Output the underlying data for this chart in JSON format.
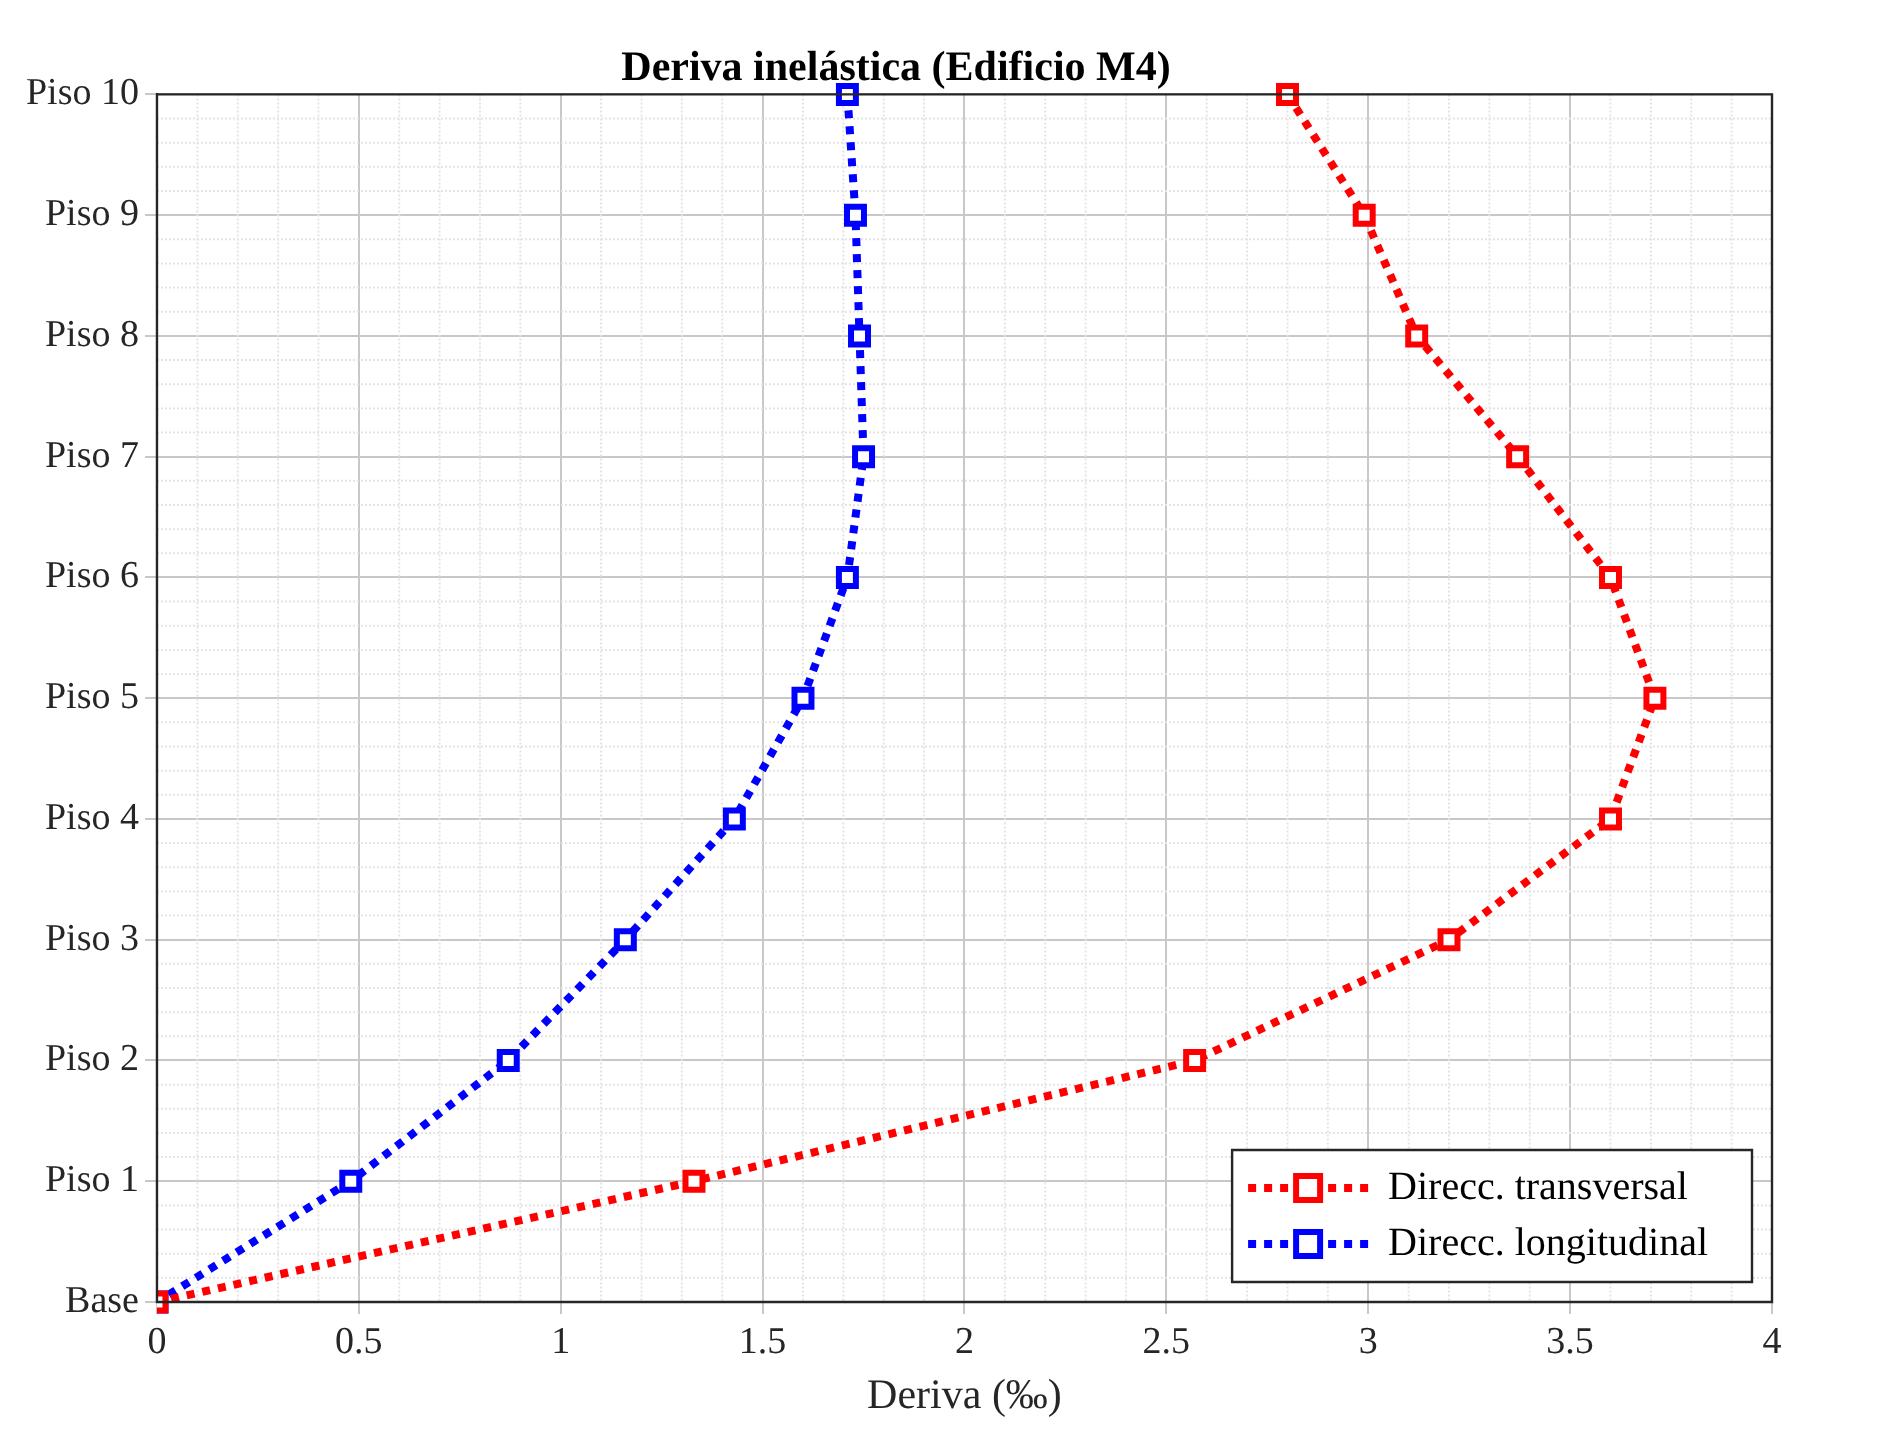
{
  "chart_data": {
    "type": "line",
    "orientation": "horizontal",
    "title": "Deriva inelástica (Edificio M4)",
    "xlabel": "Deriva (‰)",
    "categories": [
      "Piso 10",
      "Piso 9",
      "Piso 8",
      "Piso 7",
      "Piso 6",
      "Piso 5",
      "Piso 4",
      "Piso 3",
      "Piso 2",
      "Piso 1",
      "Base"
    ],
    "xlim": [
      0,
      4
    ],
    "xticks": [
      0,
      0.5,
      1,
      1.5,
      2,
      2.5,
      3,
      3.5,
      4
    ],
    "series": [
      {
        "name": "Direcc. transversal",
        "color": "#ff0000",
        "values": [
          2.8,
          2.99,
          3.12,
          3.37,
          3.6,
          3.71,
          3.6,
          3.2,
          2.57,
          1.33,
          0
        ]
      },
      {
        "name": "Direcc. longitudinal",
        "color": "#0000ff",
        "values": [
          1.71,
          1.73,
          1.74,
          1.75,
          1.71,
          1.6,
          1.43,
          1.16,
          0.87,
          0.48,
          0
        ]
      }
    ],
    "grid": true,
    "legend": "bottom right",
    "marker": "square",
    "line_style": "dotted"
  }
}
